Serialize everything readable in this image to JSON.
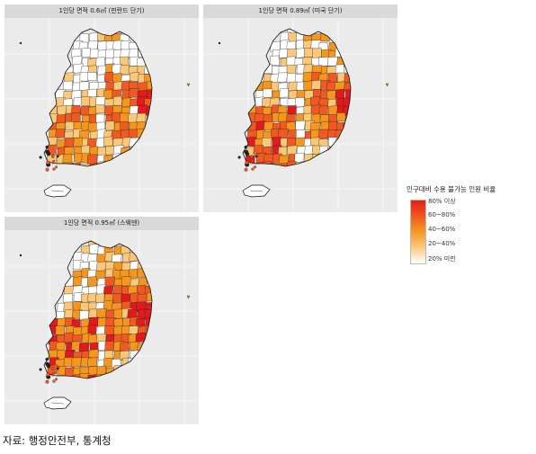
{
  "panels": [
    {
      "id": "p1",
      "title": "1인당 면적 0.6㎡ (핀란드 단기)",
      "variant": 0
    },
    {
      "id": "p2",
      "title": "1인당 면적 0.89㎡ (미국 단기)",
      "variant": 1
    },
    {
      "id": "p3",
      "title": "1인당 면적 0.95㎡ (스웨덴)",
      "variant": 2
    }
  ],
  "legend": {
    "title": "인구대비 수용 불가능 인원 비율",
    "levels": [
      "80% 이상",
      "60~80%",
      "40~60%",
      "20~40%",
      "20% 미만"
    ],
    "colors": [
      "#e31a1c",
      "#f05a22",
      "#f5961e",
      "#fac878",
      "#ffffff"
    ]
  },
  "source": "자료: 행정안전부, 통계청"
}
